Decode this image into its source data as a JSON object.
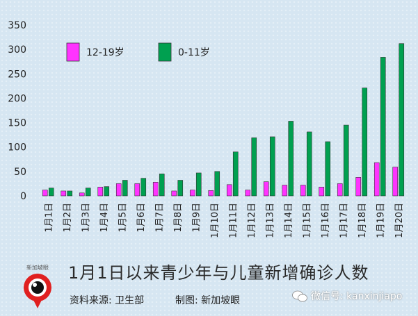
{
  "chart_data": {
    "type": "bar",
    "categories": [
      "1月1日",
      "1月2日",
      "1月3日",
      "1月4日",
      "1月5日",
      "1月6日",
      "1月7日",
      "1月8日",
      "1月9日",
      "1月10日",
      "1月11日",
      "1月12日",
      "1月13日",
      "1月14日",
      "1月15日",
      "1月16日",
      "1月17日",
      "1月18日",
      "1月19日",
      "1月20日"
    ],
    "series": [
      {
        "name": "12-19岁",
        "color": "#ff33ff",
        "values": [
          12,
          10,
          6,
          18,
          25,
          25,
          28,
          10,
          12,
          11,
          23,
          12,
          29,
          22,
          22,
          18,
          25,
          38,
          68,
          59
        ]
      },
      {
        "name": "0-11岁",
        "color": "#00a050",
        "values": [
          16,
          10,
          16,
          19,
          32,
          36,
          45,
          32,
          47,
          50,
          90,
          119,
          121,
          153,
          131,
          111,
          145,
          221,
          284,
          312
        ]
      }
    ],
    "ylim": [
      0,
      350
    ],
    "yticks": [
      0,
      50,
      100,
      150,
      200,
      250,
      300,
      350
    ],
    "legend_position": "top-left",
    "grid": false
  },
  "footer": {
    "title": "1月1日以来青少年与儿童新增确诊人数",
    "source": "资料来源:  卫生部",
    "maker": "制图:  新加坡眼",
    "logo_text": "新加坡眼",
    "wechat": "微信号: kanxinjiapo"
  }
}
